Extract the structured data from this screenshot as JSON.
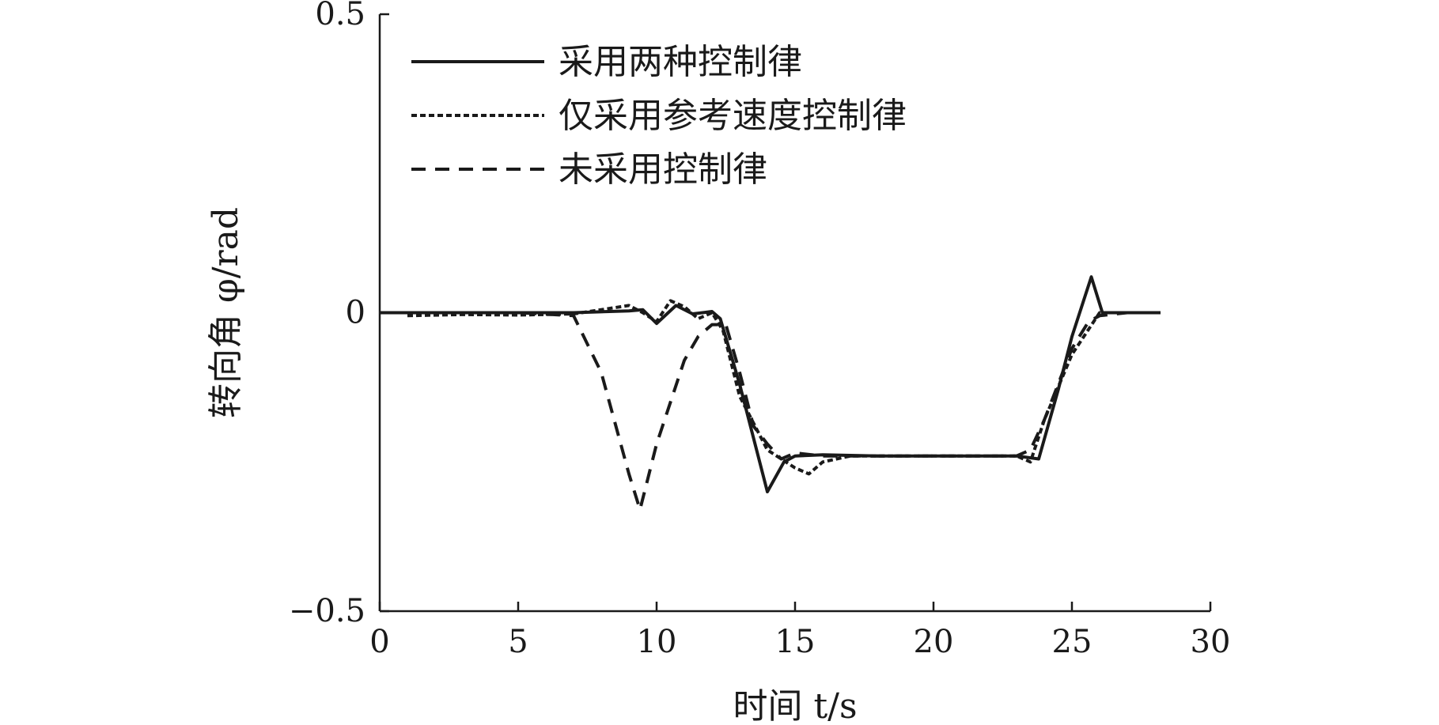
{
  "chart_data": {
    "type": "line",
    "title": "",
    "xlabel": "时间 t/s",
    "ylabel": "转向角 φ/rad",
    "xlim": [
      0,
      30
    ],
    "ylim": [
      -0.5,
      0.5
    ],
    "xticks": [
      "0",
      "5",
      "10",
      "15",
      "20",
      "25",
      "30"
    ],
    "yticks": [
      "0.5",
      "0",
      "−0.5"
    ],
    "grid": false,
    "legend_position": "top-left",
    "series": [
      {
        "name": "采用两种控制律",
        "style": "solid",
        "x": [
          0,
          7,
          9,
          9.5,
          10,
          10.7,
          11.3,
          12,
          12.3,
          13,
          14,
          14.6,
          15,
          16,
          18,
          20,
          22,
          23,
          23.8,
          24.5,
          25,
          25.7,
          26.1,
          26.5,
          27,
          28.2
        ],
        "y": [
          0,
          0,
          0.003,
          0.005,
          -0.018,
          0.012,
          -0.002,
          0.002,
          -0.01,
          -0.12,
          -0.3,
          -0.25,
          -0.24,
          -0.238,
          -0.24,
          -0.24,
          -0.24,
          -0.24,
          -0.245,
          -0.13,
          -0.04,
          0.06,
          0.0,
          0.0,
          0.0,
          0.0
        ]
      },
      {
        "name": "仅采用参考速度控制律",
        "style": "dash-dot-fine",
        "x": [
          1,
          3,
          5,
          7,
          8,
          9,
          9.5,
          10,
          10.5,
          11,
          11.5,
          12,
          12.4,
          13,
          14,
          15,
          15.5,
          16,
          17,
          20,
          22,
          23,
          23.5,
          24,
          25,
          26,
          27,
          28.2
        ],
        "y": [
          -0.005,
          -0.003,
          -0.004,
          -0.002,
          0.005,
          0.012,
          0.0,
          -0.015,
          0.02,
          0.01,
          -0.01,
          0.0,
          -0.03,
          -0.14,
          -0.23,
          -0.26,
          -0.27,
          -0.25,
          -0.24,
          -0.24,
          -0.24,
          -0.24,
          -0.25,
          -0.18,
          -0.07,
          0.0,
          0.0,
          0.0
        ]
      },
      {
        "name": "未采用控制律",
        "style": "dashed",
        "x": [
          0,
          5,
          7,
          8,
          9,
          9.4,
          10,
          11,
          11.5,
          12,
          12.5,
          13,
          13.5,
          14,
          14.5,
          15,
          16,
          18,
          20,
          22,
          23,
          23.5,
          24,
          25,
          25.6,
          26,
          27,
          28.2
        ],
        "y": [
          0,
          0,
          -0.005,
          -0.1,
          -0.27,
          -0.33,
          -0.22,
          -0.08,
          -0.04,
          -0.02,
          -0.02,
          -0.1,
          -0.19,
          -0.22,
          -0.245,
          -0.235,
          -0.24,
          -0.24,
          -0.24,
          -0.24,
          -0.24,
          -0.23,
          -0.18,
          -0.06,
          -0.015,
          -0.005,
          0.0,
          0.0
        ]
      }
    ]
  }
}
